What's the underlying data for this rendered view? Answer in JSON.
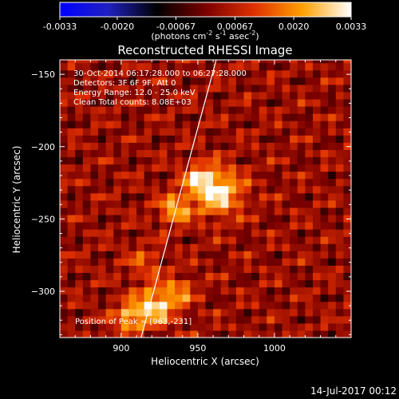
{
  "chart_data": {
    "type": "heatmap",
    "title": "Reconstructed RHESSI Image",
    "xlabel": "Heliocentric X (arcsec)",
    "ylabel": "Heliocentric Y (arcsec)",
    "xlim": [
      860,
      1050
    ],
    "ylim": [
      -332,
      -140
    ],
    "xticks": [
      900,
      950,
      1000
    ],
    "yticks": [
      -150,
      -200,
      -250,
      -300
    ],
    "grid": false,
    "colorbar": {
      "position": "top",
      "min": -0.0033,
      "max": 0.0033,
      "ticks": [
        "-0.0033",
        "-0.0020",
        "-0.00067",
        "0.00067",
        "0.0020",
        "0.0033"
      ],
      "tick_values": [
        -0.0033,
        -0.002,
        -0.00067,
        0.00067,
        0.002,
        0.0033
      ],
      "units_label": "(photons cm",
      "units_sup1": "-2",
      "units_mid1": " s",
      "units_sup2": "-1",
      "units_mid2": " asec",
      "units_sup3": "-2",
      "units_end": ")",
      "colormap": [
        "#0000ff",
        "#2020c0",
        "#000000",
        "#7a0000",
        "#e03000",
        "#ffa000",
        "#ffffff"
      ]
    },
    "annotations": [
      "30-Oct-2014 06:17:28.000 to 06:27:28.000",
      "Detectors: 3F 6F 9F, Att 0",
      "Energy Range: 12.0 - 25.0 keV",
      "Clean     Total counts: 8.08E+03"
    ],
    "peak_label": "Position of Peak = [963,-231]",
    "peak": {
      "x": 963,
      "y": -231
    },
    "sources": [
      {
        "x": 963,
        "y": -231,
        "sigma": 11,
        "amp": 0.0028
      },
      {
        "x": 950,
        "y": -222,
        "sigma": 7,
        "amp": 0.0018
      },
      {
        "x": 935,
        "y": -243,
        "sigma": 7,
        "amp": 0.0022
      },
      {
        "x": 922,
        "y": -310,
        "sigma": 9,
        "amp": 0.0026
      },
      {
        "x": 905,
        "y": -318,
        "sigma": 7,
        "amp": 0.002
      },
      {
        "x": 938,
        "y": -300,
        "sigma": 7,
        "amp": 0.0014
      },
      {
        "x": 915,
        "y": -280,
        "sigma": 8,
        "amp": 0.001
      }
    ],
    "limb": {
      "x_at_ymin": 913,
      "x_at_ymax": 962
    }
  },
  "footer": {
    "timestamp": "14-Jul-2017 00:12"
  }
}
